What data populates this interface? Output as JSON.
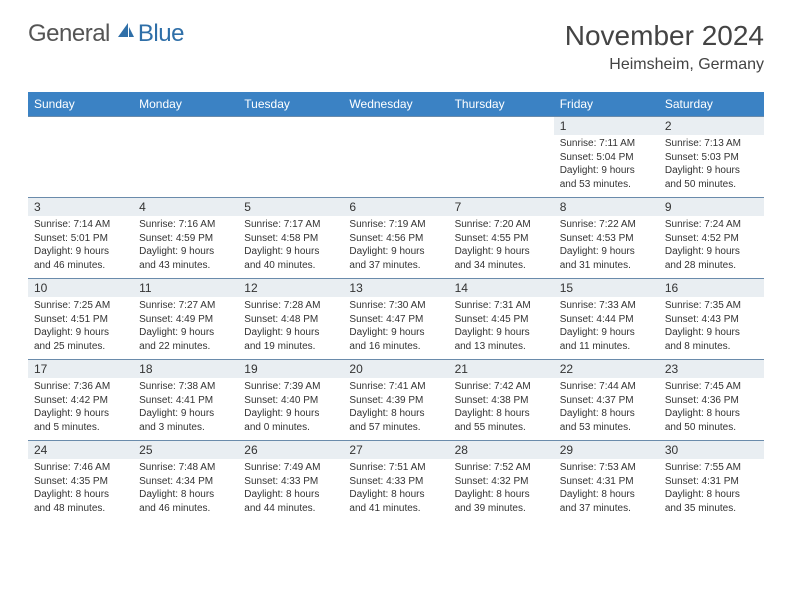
{
  "logo": {
    "general": "General",
    "blue": "Blue"
  },
  "title": "November 2024",
  "location": "Heimsheim, Germany",
  "colors": {
    "header_bg": "#3b82c4",
    "daynum_bg": "#e9eef2",
    "rule": "#6a8bab"
  },
  "dow": [
    "Sunday",
    "Monday",
    "Tuesday",
    "Wednesday",
    "Thursday",
    "Friday",
    "Saturday"
  ],
  "weeks": [
    [
      null,
      null,
      null,
      null,
      null,
      {
        "n": "1",
        "sr": "7:11 AM",
        "ss": "5:04 PM",
        "dh": "9",
        "dm": "53"
      },
      {
        "n": "2",
        "sr": "7:13 AM",
        "ss": "5:03 PM",
        "dh": "9",
        "dm": "50"
      }
    ],
    [
      {
        "n": "3",
        "sr": "7:14 AM",
        "ss": "5:01 PM",
        "dh": "9",
        "dm": "46"
      },
      {
        "n": "4",
        "sr": "7:16 AM",
        "ss": "4:59 PM",
        "dh": "9",
        "dm": "43"
      },
      {
        "n": "5",
        "sr": "7:17 AM",
        "ss": "4:58 PM",
        "dh": "9",
        "dm": "40"
      },
      {
        "n": "6",
        "sr": "7:19 AM",
        "ss": "4:56 PM",
        "dh": "9",
        "dm": "37"
      },
      {
        "n": "7",
        "sr": "7:20 AM",
        "ss": "4:55 PM",
        "dh": "9",
        "dm": "34"
      },
      {
        "n": "8",
        "sr": "7:22 AM",
        "ss": "4:53 PM",
        "dh": "9",
        "dm": "31"
      },
      {
        "n": "9",
        "sr": "7:24 AM",
        "ss": "4:52 PM",
        "dh": "9",
        "dm": "28"
      }
    ],
    [
      {
        "n": "10",
        "sr": "7:25 AM",
        "ss": "4:51 PM",
        "dh": "9",
        "dm": "25"
      },
      {
        "n": "11",
        "sr": "7:27 AM",
        "ss": "4:49 PM",
        "dh": "9",
        "dm": "22"
      },
      {
        "n": "12",
        "sr": "7:28 AM",
        "ss": "4:48 PM",
        "dh": "9",
        "dm": "19"
      },
      {
        "n": "13",
        "sr": "7:30 AM",
        "ss": "4:47 PM",
        "dh": "9",
        "dm": "16"
      },
      {
        "n": "14",
        "sr": "7:31 AM",
        "ss": "4:45 PM",
        "dh": "9",
        "dm": "13"
      },
      {
        "n": "15",
        "sr": "7:33 AM",
        "ss": "4:44 PM",
        "dh": "9",
        "dm": "11"
      },
      {
        "n": "16",
        "sr": "7:35 AM",
        "ss": "4:43 PM",
        "dh": "9",
        "dm": "8"
      }
    ],
    [
      {
        "n": "17",
        "sr": "7:36 AM",
        "ss": "4:42 PM",
        "dh": "9",
        "dm": "5"
      },
      {
        "n": "18",
        "sr": "7:38 AM",
        "ss": "4:41 PM",
        "dh": "9",
        "dm": "3"
      },
      {
        "n": "19",
        "sr": "7:39 AM",
        "ss": "4:40 PM",
        "dh": "9",
        "dm": "0"
      },
      {
        "n": "20",
        "sr": "7:41 AM",
        "ss": "4:39 PM",
        "dh": "8",
        "dm": "57"
      },
      {
        "n": "21",
        "sr": "7:42 AM",
        "ss": "4:38 PM",
        "dh": "8",
        "dm": "55"
      },
      {
        "n": "22",
        "sr": "7:44 AM",
        "ss": "4:37 PM",
        "dh": "8",
        "dm": "53"
      },
      {
        "n": "23",
        "sr": "7:45 AM",
        "ss": "4:36 PM",
        "dh": "8",
        "dm": "50"
      }
    ],
    [
      {
        "n": "24",
        "sr": "7:46 AM",
        "ss": "4:35 PM",
        "dh": "8",
        "dm": "48"
      },
      {
        "n": "25",
        "sr": "7:48 AM",
        "ss": "4:34 PM",
        "dh": "8",
        "dm": "46"
      },
      {
        "n": "26",
        "sr": "7:49 AM",
        "ss": "4:33 PM",
        "dh": "8",
        "dm": "44"
      },
      {
        "n": "27",
        "sr": "7:51 AM",
        "ss": "4:33 PM",
        "dh": "8",
        "dm": "41"
      },
      {
        "n": "28",
        "sr": "7:52 AM",
        "ss": "4:32 PM",
        "dh": "8",
        "dm": "39"
      },
      {
        "n": "29",
        "sr": "7:53 AM",
        "ss": "4:31 PM",
        "dh": "8",
        "dm": "37"
      },
      {
        "n": "30",
        "sr": "7:55 AM",
        "ss": "4:31 PM",
        "dh": "8",
        "dm": "35"
      }
    ]
  ]
}
